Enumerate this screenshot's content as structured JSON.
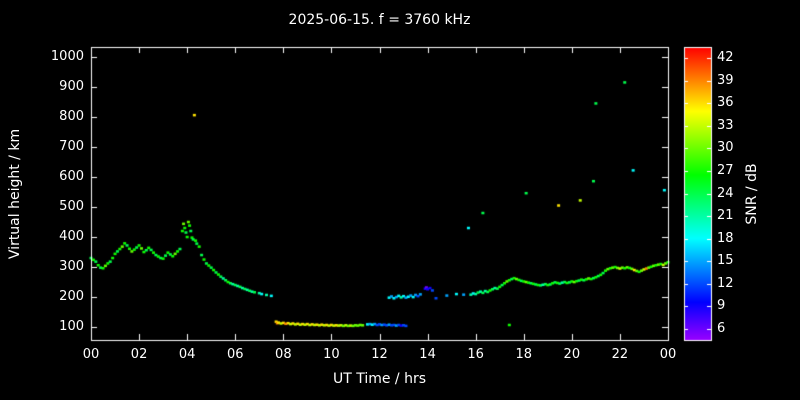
{
  "header": {
    "title": "2025-06-15. f = 3760 kHz"
  },
  "chart_data": {
    "type": "scatter",
    "title": "2025-06-15. f = 3760 kHz",
    "xlabel": "UT Time / hrs",
    "ylabel": "Virtual height / km",
    "colorbar_label": "SNR / dB",
    "background": "#000000",
    "axis_color": "#ffffff",
    "xlim": [
      0,
      24
    ],
    "ylim_km": [
      57,
      1033
    ],
    "y_ticks": [
      100,
      200,
      300,
      400,
      500,
      600,
      700,
      800,
      900,
      1000
    ],
    "x_ticks": [
      0,
      2,
      4,
      6,
      8,
      10,
      12,
      14,
      16,
      18,
      20,
      22,
      24
    ],
    "x_tick_labels": [
      "00",
      "02",
      "04",
      "06",
      "08",
      "10",
      "12",
      "14",
      "16",
      "18",
      "20",
      "22",
      "00"
    ],
    "colorbar": {
      "ticks": [
        6,
        9,
        12,
        15,
        18,
        21,
        24,
        27,
        30,
        33,
        36,
        39,
        42
      ],
      "range": [
        4.5,
        43.5
      ],
      "hue_start": 276,
      "hue_end": 0,
      "description": "rainbow: purple at 6 dB to red at 42 dB"
    },
    "points": [
      [
        0.0,
        330,
        24
      ],
      [
        0.1,
        324,
        27
      ],
      [
        0.2,
        318,
        24
      ],
      [
        0.3,
        306,
        27
      ],
      [
        0.4,
        298,
        24
      ],
      [
        0.5,
        296,
        27
      ],
      [
        0.6,
        304,
        30
      ],
      [
        0.7,
        312,
        27
      ],
      [
        0.8,
        318,
        24
      ],
      [
        0.9,
        330,
        27
      ],
      [
        1.0,
        344,
        27
      ],
      [
        1.1,
        352,
        24
      ],
      [
        1.2,
        360,
        27
      ],
      [
        1.3,
        368,
        30
      ],
      [
        1.4,
        379,
        27
      ],
      [
        1.5,
        372,
        24
      ],
      [
        1.6,
        361,
        27
      ],
      [
        1.7,
        352,
        30
      ],
      [
        1.8,
        358,
        27
      ],
      [
        1.9,
        365,
        24
      ],
      [
        2.0,
        372,
        27
      ],
      [
        2.1,
        362,
        30
      ],
      [
        2.2,
        350,
        27
      ],
      [
        2.3,
        356,
        24
      ],
      [
        2.4,
        364,
        27
      ],
      [
        2.5,
        357,
        24
      ],
      [
        2.6,
        348,
        27
      ],
      [
        2.7,
        340,
        24
      ],
      [
        2.8,
        335,
        27
      ],
      [
        2.9,
        330,
        24
      ],
      [
        3.0,
        328,
        27
      ],
      [
        3.1,
        338,
        24
      ],
      [
        3.2,
        348,
        27
      ],
      [
        3.3,
        342,
        24
      ],
      [
        3.4,
        336,
        27
      ],
      [
        3.5,
        344,
        30
      ],
      [
        3.6,
        352,
        27
      ],
      [
        3.7,
        360,
        24
      ],
      [
        3.8,
        420,
        27
      ],
      [
        3.85,
        444,
        30
      ],
      [
        3.9,
        430,
        27
      ],
      [
        3.95,
        415,
        24
      ],
      [
        4.0,
        400,
        27
      ],
      [
        4.05,
        450,
        30
      ],
      [
        4.1,
        438,
        27
      ],
      [
        4.15,
        420,
        24
      ],
      [
        4.2,
        398,
        27
      ],
      [
        4.25,
        392,
        24
      ],
      [
        4.3,
        806,
        36
      ],
      [
        4.35,
        388,
        27
      ],
      [
        4.4,
        378,
        24
      ],
      [
        4.5,
        368,
        27
      ],
      [
        4.6,
        340,
        24
      ],
      [
        4.7,
        325,
        27
      ],
      [
        4.8,
        312,
        24
      ],
      [
        4.9,
        305,
        27
      ],
      [
        5.0,
        298,
        24
      ],
      [
        5.1,
        290,
        27
      ],
      [
        5.2,
        282,
        24
      ],
      [
        5.3,
        275,
        27
      ],
      [
        5.4,
        268,
        24
      ],
      [
        5.5,
        262,
        21
      ],
      [
        5.6,
        256,
        24
      ],
      [
        5.7,
        250,
        27
      ],
      [
        5.8,
        246,
        24
      ],
      [
        5.9,
        243,
        21
      ],
      [
        6.0,
        240,
        24
      ],
      [
        6.1,
        237,
        21
      ],
      [
        6.2,
        234,
        24
      ],
      [
        6.3,
        230,
        21
      ],
      [
        6.4,
        227,
        24
      ],
      [
        6.5,
        224,
        21
      ],
      [
        6.6,
        221,
        24
      ],
      [
        6.7,
        218,
        21
      ],
      [
        6.8,
        216,
        24
      ],
      [
        7.0,
        213,
        21
      ],
      [
        7.1,
        210,
        18
      ],
      [
        7.3,
        207,
        21
      ],
      [
        7.5,
        204,
        18
      ],
      [
        7.7,
        118,
        36
      ],
      [
        7.75,
        113,
        39
      ],
      [
        7.8,
        115,
        36
      ],
      [
        7.9,
        112,
        33
      ],
      [
        8.0,
        114,
        36
      ],
      [
        8.1,
        111,
        39
      ],
      [
        8.2,
        113,
        36
      ],
      [
        8.3,
        110,
        33
      ],
      [
        8.4,
        112,
        36
      ],
      [
        8.5,
        109,
        33
      ],
      [
        8.6,
        111,
        36
      ],
      [
        8.7,
        108,
        33
      ],
      [
        8.8,
        110,
        36
      ],
      [
        8.9,
        108,
        33
      ],
      [
        9.0,
        110,
        36
      ],
      [
        9.1,
        107,
        33
      ],
      [
        9.2,
        109,
        36
      ],
      [
        9.3,
        107,
        33
      ],
      [
        9.4,
        108,
        36
      ],
      [
        9.5,
        106,
        33
      ],
      [
        9.6,
        108,
        36
      ],
      [
        9.7,
        106,
        33
      ],
      [
        9.8,
        107,
        36
      ],
      [
        9.9,
        105,
        33
      ],
      [
        10.0,
        107,
        36
      ],
      [
        10.1,
        105,
        33
      ],
      [
        10.2,
        106,
        36
      ],
      [
        10.3,
        105,
        33
      ],
      [
        10.4,
        106,
        33
      ],
      [
        10.5,
        104,
        30
      ],
      [
        10.6,
        106,
        33
      ],
      [
        10.7,
        104,
        30
      ],
      [
        10.8,
        105,
        33
      ],
      [
        10.9,
        104,
        30
      ],
      [
        11.0,
        106,
        30
      ],
      [
        11.1,
        105,
        30
      ],
      [
        11.2,
        107,
        30
      ],
      [
        11.3,
        106,
        30
      ],
      [
        11.5,
        109,
        18
      ],
      [
        11.6,
        110,
        15
      ],
      [
        11.7,
        108,
        18
      ],
      [
        11.8,
        110,
        15
      ],
      [
        11.9,
        107,
        12
      ],
      [
        12.0,
        109,
        12
      ],
      [
        12.1,
        107,
        15
      ],
      [
        12.2,
        108,
        12
      ],
      [
        12.3,
        106,
        12
      ],
      [
        12.4,
        108,
        15
      ],
      [
        12.5,
        106,
        12
      ],
      [
        12.6,
        107,
        12
      ],
      [
        12.7,
        105,
        15
      ],
      [
        12.8,
        107,
        12
      ],
      [
        12.9,
        105,
        9
      ],
      [
        13.0,
        106,
        12
      ],
      [
        13.1,
        104,
        12
      ],
      [
        12.4,
        198,
        18
      ],
      [
        12.5,
        202,
        15
      ],
      [
        12.6,
        196,
        18
      ],
      [
        12.7,
        200,
        15
      ],
      [
        12.8,
        204,
        18
      ],
      [
        12.9,
        199,
        21
      ],
      [
        13.0,
        203,
        18
      ],
      [
        13.1,
        198,
        15
      ],
      [
        13.2,
        201,
        18
      ],
      [
        13.3,
        205,
        15
      ],
      [
        13.4,
        200,
        18
      ],
      [
        13.5,
        207,
        15
      ],
      [
        13.6,
        203,
        12
      ],
      [
        13.7,
        209,
        15
      ],
      [
        13.9,
        228,
        9
      ],
      [
        13.95,
        232,
        6
      ],
      [
        14.0,
        226,
        9
      ],
      [
        14.1,
        230,
        9
      ],
      [
        14.2,
        222,
        12
      ],
      [
        14.35,
        196,
        12
      ],
      [
        14.8,
        205,
        15
      ],
      [
        15.2,
        210,
        18
      ],
      [
        15.5,
        208,
        15
      ],
      [
        15.8,
        208,
        21
      ],
      [
        15.9,
        212,
        18
      ],
      [
        16.0,
        210,
        21
      ],
      [
        16.1,
        215,
        24
      ],
      [
        16.2,
        218,
        21
      ],
      [
        16.3,
        214,
        24
      ],
      [
        16.4,
        220,
        21
      ],
      [
        16.5,
        217,
        24
      ],
      [
        16.6,
        222,
        27
      ],
      [
        16.7,
        226,
        24
      ],
      [
        16.8,
        230,
        21
      ],
      [
        16.9,
        228,
        24
      ],
      [
        17.0,
        234,
        27
      ],
      [
        17.1,
        240,
        24
      ],
      [
        17.2,
        246,
        27
      ],
      [
        17.3,
        252,
        30
      ],
      [
        17.4,
        256,
        27
      ],
      [
        17.5,
        260,
        24
      ],
      [
        17.6,
        263,
        27
      ],
      [
        17.7,
        260,
        30
      ],
      [
        17.8,
        257,
        27
      ],
      [
        17.9,
        254,
        24
      ],
      [
        18.0,
        252,
        27
      ],
      [
        18.1,
        250,
        30
      ],
      [
        18.2,
        248,
        27
      ],
      [
        18.3,
        246,
        24
      ],
      [
        18.4,
        244,
        27
      ],
      [
        18.5,
        242,
        24
      ],
      [
        18.6,
        240,
        27
      ],
      [
        18.7,
        239,
        24
      ],
      [
        18.8,
        241,
        21
      ],
      [
        18.9,
        243,
        24
      ],
      [
        19.0,
        240,
        27
      ],
      [
        19.1,
        242,
        24
      ],
      [
        19.2,
        246,
        27
      ],
      [
        19.3,
        249,
        24
      ],
      [
        19.4,
        247,
        27
      ],
      [
        19.5,
        245,
        24
      ],
      [
        19.6,
        248,
        21
      ],
      [
        19.7,
        250,
        24
      ],
      [
        19.8,
        247,
        27
      ],
      [
        19.9,
        249,
        24
      ],
      [
        20.0,
        252,
        27
      ],
      [
        20.1,
        250,
        30
      ],
      [
        20.2,
        253,
        27
      ],
      [
        20.3,
        255,
        24
      ],
      [
        20.4,
        258,
        27
      ],
      [
        20.5,
        256,
        24
      ],
      [
        20.6,
        259,
        27
      ],
      [
        20.7,
        262,
        30
      ],
      [
        20.8,
        260,
        27
      ],
      [
        20.9,
        263,
        24
      ],
      [
        21.0,
        266,
        27
      ],
      [
        21.1,
        270,
        24
      ],
      [
        21.2,
        274,
        27
      ],
      [
        21.3,
        280,
        24
      ],
      [
        21.4,
        288,
        27
      ],
      [
        21.5,
        293,
        30
      ],
      [
        21.6,
        296,
        27
      ],
      [
        21.7,
        298,
        30
      ],
      [
        21.8,
        300,
        27
      ],
      [
        21.9,
        297,
        30
      ],
      [
        22.0,
        295,
        33
      ],
      [
        22.1,
        298,
        30
      ],
      [
        22.2,
        296,
        27
      ],
      [
        22.3,
        299,
        30
      ],
      [
        22.4,
        297,
        27
      ],
      [
        22.5,
        294,
        30
      ],
      [
        22.6,
        290,
        36
      ],
      [
        22.7,
        287,
        30
      ],
      [
        22.8,
        284,
        27
      ],
      [
        22.9,
        288,
        30
      ],
      [
        23.0,
        292,
        33
      ],
      [
        23.1,
        295,
        39
      ],
      [
        23.2,
        298,
        30
      ],
      [
        23.3,
        301,
        27
      ],
      [
        23.4,
        304,
        30
      ],
      [
        23.5,
        306,
        27
      ],
      [
        23.6,
        308,
        30
      ],
      [
        23.7,
        310,
        27
      ],
      [
        23.8,
        307,
        33
      ],
      [
        23.9,
        312,
        30
      ],
      [
        24.0,
        316,
        27
      ],
      [
        15.7,
        430,
        18
      ],
      [
        16.3,
        480,
        24
      ],
      [
        17.4,
        107,
        27
      ],
      [
        18.1,
        546,
        24
      ],
      [
        19.45,
        505,
        36
      ],
      [
        20.35,
        522,
        33
      ],
      [
        20.9,
        586,
        24
      ],
      [
        21.0,
        845,
        24
      ],
      [
        22.2,
        915,
        24
      ],
      [
        22.55,
        622,
        18
      ],
      [
        23.85,
        556,
        18
      ]
    ]
  }
}
